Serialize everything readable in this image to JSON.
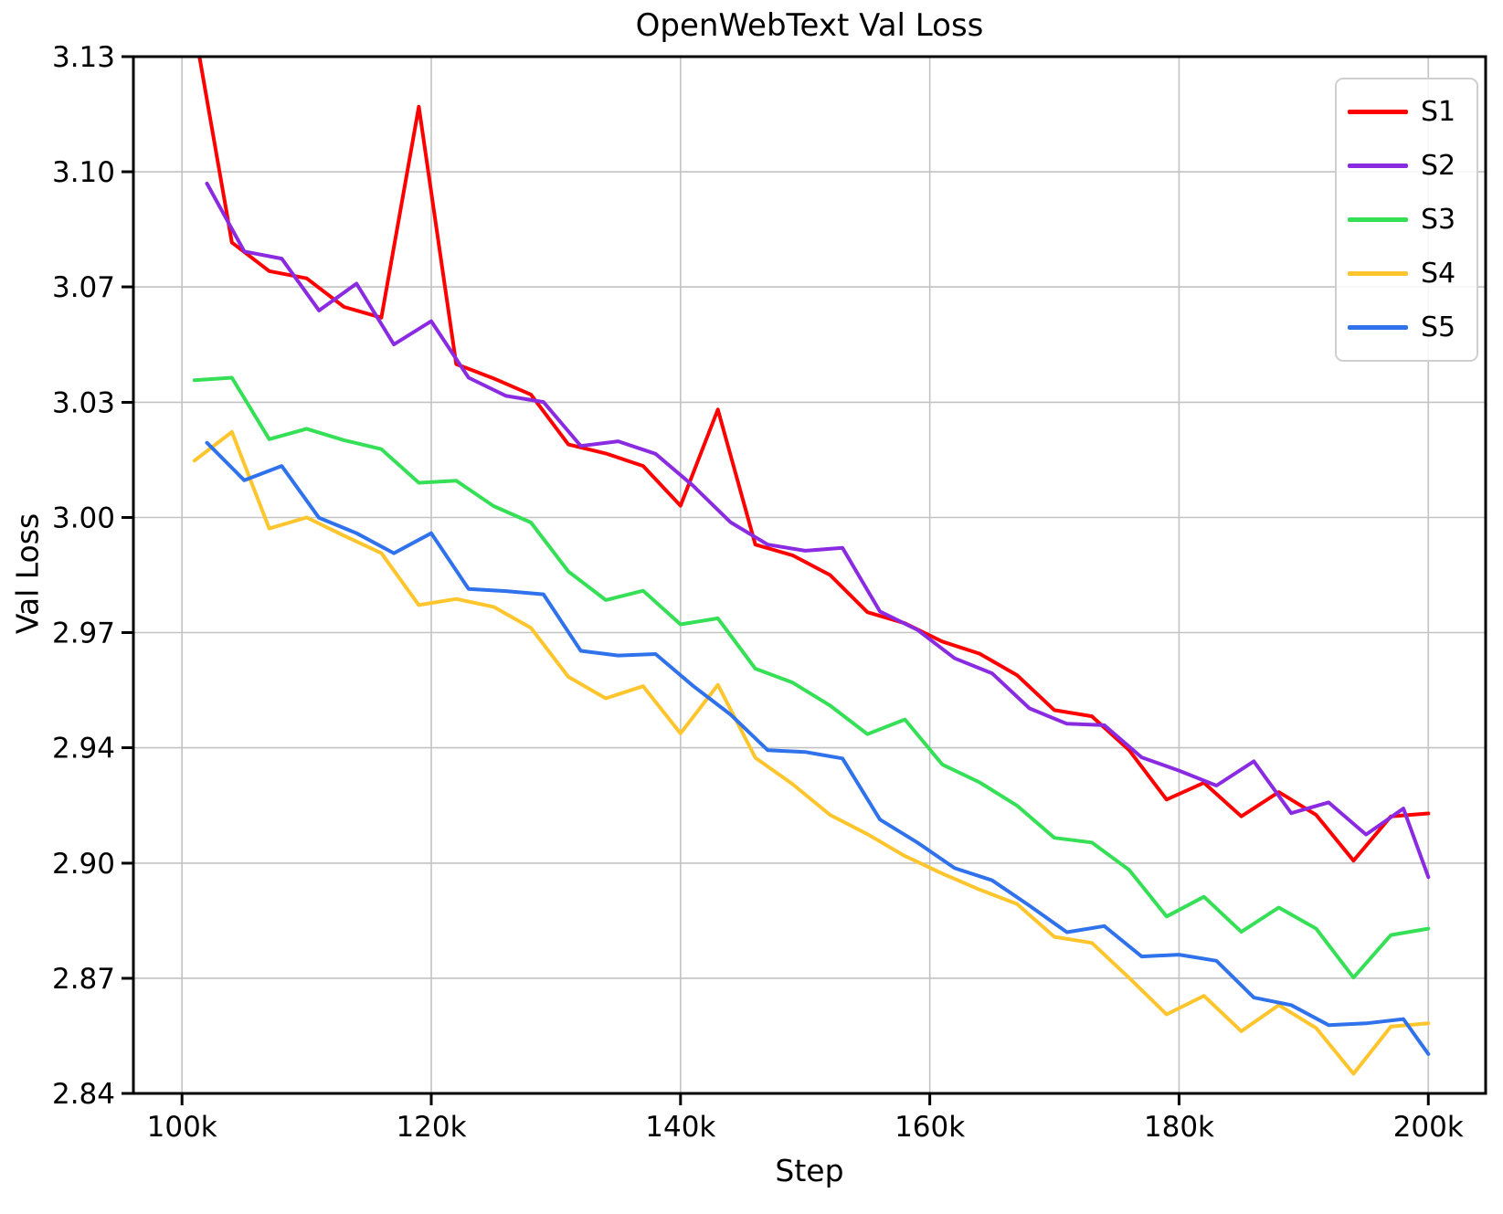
{
  "title": "OpenWebText Val Loss",
  "axes": {
    "x_label": "Step",
    "y_label": "Val Loss"
  },
  "legend": {
    "labels": [
      "S1",
      "S2",
      "S3",
      "S4",
      "S5"
    ]
  },
  "colors": {
    "s1": "#ff0000",
    "s2": "#8a2be2",
    "s3": "#35e057",
    "s4": "#ffc52c",
    "s5": "#2f72ec",
    "grid": "#c3c3c3",
    "spine": "#000000",
    "legend_border": "#cfcfcf"
  },
  "chart_data": {
    "type": "line",
    "title": "OpenWebText Val Loss",
    "xlabel": "Step",
    "ylabel": "Val Loss",
    "xlim": [
      96100,
      204600
    ],
    "ylim": [
      2.84,
      3.13
    ],
    "grid": true,
    "legend_position": "upper right",
    "x_ticks": [
      {
        "v": 100000,
        "label": "100k"
      },
      {
        "v": 120000,
        "label": "120k"
      },
      {
        "v": 140000,
        "label": "140k"
      },
      {
        "v": 160000,
        "label": "160k"
      },
      {
        "v": 180000,
        "label": "180k"
      },
      {
        "v": 200000,
        "label": "200k"
      }
    ],
    "y_ticks": [
      {
        "v": 2.84,
        "label": "2.84"
      },
      {
        "v": 2.8722,
        "label": "2.87"
      },
      {
        "v": 2.9044,
        "label": "2.90"
      },
      {
        "v": 2.9367,
        "label": "2.94"
      },
      {
        "v": 2.9689,
        "label": "2.97"
      },
      {
        "v": 3.0011,
        "label": "3.00"
      },
      {
        "v": 3.0333,
        "label": "3.03"
      },
      {
        "v": 3.0656,
        "label": "3.07"
      },
      {
        "v": 3.0978,
        "label": "3.10"
      },
      {
        "v": 3.13,
        "label": "3.13"
      }
    ],
    "series": [
      {
        "name": "S1",
        "color": "#ff0000",
        "x": [
          101000,
          104000,
          107000,
          110000,
          113000,
          116000,
          119000,
          122000,
          125000,
          128000,
          131000,
          134000,
          137000,
          140000,
          143000,
          146000,
          149000,
          152000,
          155000,
          158000,
          161000,
          164000,
          167000,
          170000,
          173000,
          176000,
          179000,
          182000,
          185000,
          188000,
          191000,
          194000,
          197000,
          200000
        ],
        "y": [
          3.138,
          3.078,
          3.07,
          3.068,
          3.06,
          3.057,
          3.116,
          3.044,
          3.04,
          3.0355,
          3.0215,
          3.019,
          3.0155,
          3.0044,
          3.0313,
          2.9935,
          2.9905,
          2.985,
          2.9746,
          2.9715,
          2.9664,
          2.963,
          2.957,
          2.9472,
          2.9455,
          2.936,
          2.9222,
          2.9269,
          2.9175,
          2.9243,
          2.9179,
          2.9051,
          2.9175,
          2.9183
        ]
      },
      {
        "name": "S2",
        "color": "#8a2be2",
        "x": [
          102000,
          105000,
          108000,
          111000,
          114000,
          117000,
          120000,
          123000,
          126000,
          129000,
          132000,
          135000,
          138000,
          141000,
          144000,
          147000,
          150000,
          153000,
          156000,
          159000,
          162000,
          165000,
          168000,
          171000,
          174000,
          177000,
          180000,
          183000,
          186000,
          189000,
          192000,
          195000,
          198000,
          200000
        ],
        "y": [
          3.0945,
          3.0755,
          3.0735,
          3.059,
          3.0665,
          3.0495,
          3.056,
          3.0402,
          3.0351,
          3.0334,
          3.0211,
          3.0224,
          3.0189,
          3.01,
          2.9998,
          2.9935,
          2.9918,
          2.9926,
          2.9748,
          2.9697,
          2.9617,
          2.9575,
          2.9477,
          2.9434,
          2.943,
          2.934,
          2.9303,
          2.9261,
          2.9329,
          2.9184,
          2.9214,
          2.9124,
          2.9197,
          2.9005
        ]
      },
      {
        "name": "S3",
        "color": "#35e057",
        "x": [
          101000,
          104000,
          107000,
          110000,
          113000,
          116000,
          119000,
          122000,
          125000,
          128000,
          131000,
          134000,
          137000,
          140000,
          143000,
          146000,
          149000,
          152000,
          155000,
          158000,
          161000,
          164000,
          167000,
          170000,
          173000,
          176000,
          179000,
          182000,
          185000,
          188000,
          191000,
          194000,
          197000,
          200000
        ],
        "y": [
          3.0395,
          3.0402,
          3.023,
          3.0259,
          3.0227,
          3.0202,
          3.0108,
          3.0114,
          3.0043,
          2.9997,
          2.986,
          2.978,
          2.9806,
          2.9712,
          2.9729,
          2.9588,
          2.9549,
          2.9485,
          2.9405,
          2.9446,
          2.932,
          2.927,
          2.9205,
          2.9115,
          2.9102,
          2.9025,
          2.8895,
          2.895,
          2.8852,
          2.892,
          2.8861,
          2.8724,
          2.8843,
          2.8861
        ]
      },
      {
        "name": "S4",
        "color": "#ffc52c",
        "x": [
          101000,
          104000,
          107000,
          110000,
          113000,
          116000,
          119000,
          122000,
          125000,
          128000,
          131000,
          134000,
          137000,
          140000,
          143000,
          146000,
          149000,
          152000,
          155000,
          158000,
          161000,
          164000,
          167000,
          170000,
          173000,
          176000,
          179000,
          182000,
          185000,
          188000,
          191000,
          194000,
          197000,
          200000
        ],
        "y": [
          3.017,
          3.025,
          2.998,
          3.0011,
          2.996,
          2.9911,
          2.9766,
          2.9783,
          2.9761,
          2.9702,
          2.9565,
          2.9505,
          2.9539,
          2.9407,
          2.9543,
          2.9339,
          2.9265,
          2.9179,
          2.9125,
          2.9064,
          2.9015,
          2.897,
          2.893,
          2.8838,
          2.8821,
          2.8723,
          2.8621,
          2.8673,
          2.8574,
          2.8647,
          2.8583,
          2.8455,
          2.8587,
          2.8596
        ]
      },
      {
        "name": "S5",
        "color": "#2f72ec",
        "x": [
          102000,
          105000,
          108000,
          111000,
          114000,
          117000,
          120000,
          123000,
          126000,
          129000,
          132000,
          135000,
          138000,
          141000,
          144000,
          147000,
          150000,
          153000,
          156000,
          159000,
          162000,
          165000,
          168000,
          171000,
          174000,
          177000,
          180000,
          183000,
          186000,
          189000,
          192000,
          195000,
          198000,
          200000
        ],
        "y": [
          3.022,
          3.0115,
          3.0155,
          3.001,
          2.9967,
          2.9911,
          2.9967,
          2.9811,
          2.9805,
          2.9796,
          2.9638,
          2.9625,
          2.9629,
          2.954,
          2.946,
          2.936,
          2.9355,
          2.9337,
          2.9166,
          2.9102,
          2.903,
          2.8996,
          2.8925,
          2.8851,
          2.8868,
          2.8783,
          2.8788,
          2.8771,
          2.8668,
          2.8647,
          2.8591,
          2.8596,
          2.8608,
          2.851
        ]
      }
    ]
  }
}
